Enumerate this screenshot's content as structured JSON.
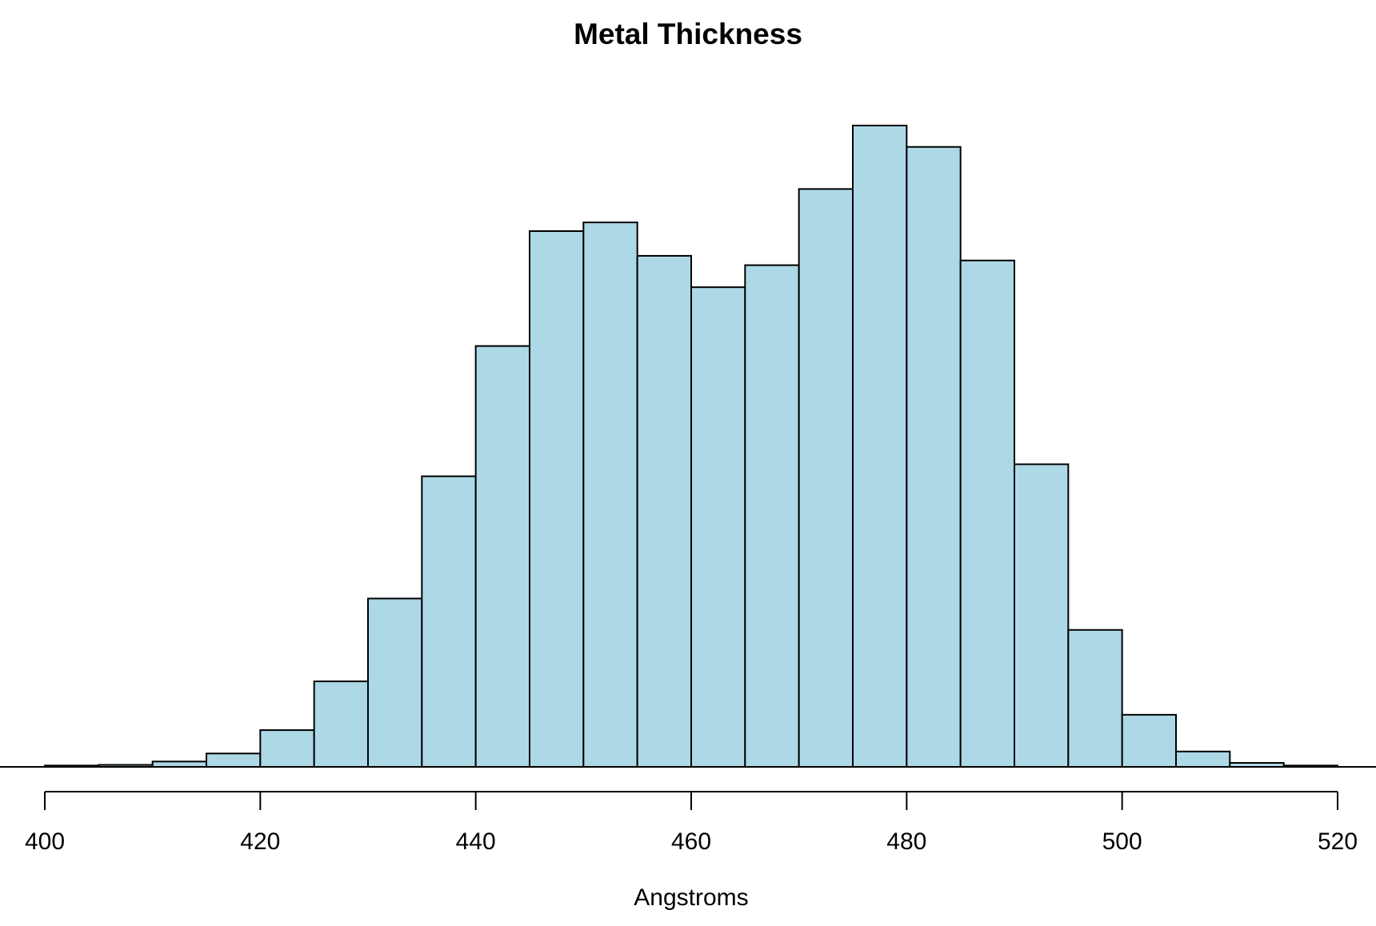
{
  "chart_data": {
    "type": "bar",
    "title": "Metal Thickness",
    "xlabel": "Angstroms",
    "ylabel": "",
    "bin_edges": [
      400,
      405,
      410,
      415,
      420,
      425,
      430,
      435,
      440,
      445,
      450,
      455,
      460,
      465,
      470,
      475,
      480,
      485,
      490,
      495,
      500,
      505,
      510,
      515,
      520
    ],
    "values": [
      2,
      3,
      8,
      20,
      55,
      128,
      252,
      435,
      630,
      802,
      815,
      765,
      718,
      751,
      865,
      960,
      928,
      758,
      453,
      205,
      78,
      23,
      6,
      2
    ],
    "ylim": [
      0,
      1020
    ],
    "xlim": [
      400,
      520
    ],
    "x_ticks": [
      "400",
      "420",
      "440",
      "460",
      "480",
      "500",
      "520"
    ],
    "bar_color": "#add8e6",
    "border_color": "#000000",
    "grid": false,
    "y_axis_shown": false
  }
}
